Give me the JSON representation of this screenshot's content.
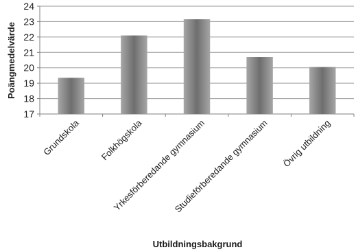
{
  "chart_data": {
    "type": "bar",
    "title": "",
    "xlabel": "Utbildningsbakgrund",
    "ylabel": "Poängmedelvärde",
    "categories": [
      "Grundskola",
      "Folkhögskola",
      "Yrkesförberedande gymnasium",
      "Studieförberedande gymnasium",
      "Övrig utbildning"
    ],
    "values": [
      19.35,
      22.1,
      23.15,
      20.7,
      20.05
    ],
    "ylim": [
      17,
      24
    ],
    "yticks": [
      17,
      18,
      19,
      20,
      21,
      22,
      23,
      24
    ],
    "grid": true,
    "legend": "none",
    "colors": {
      "bar_light": "#a6a6a6",
      "bar_dark": "#6e6e6e",
      "grid": "#9a9a9a",
      "axis": "#7f7f7f"
    }
  }
}
